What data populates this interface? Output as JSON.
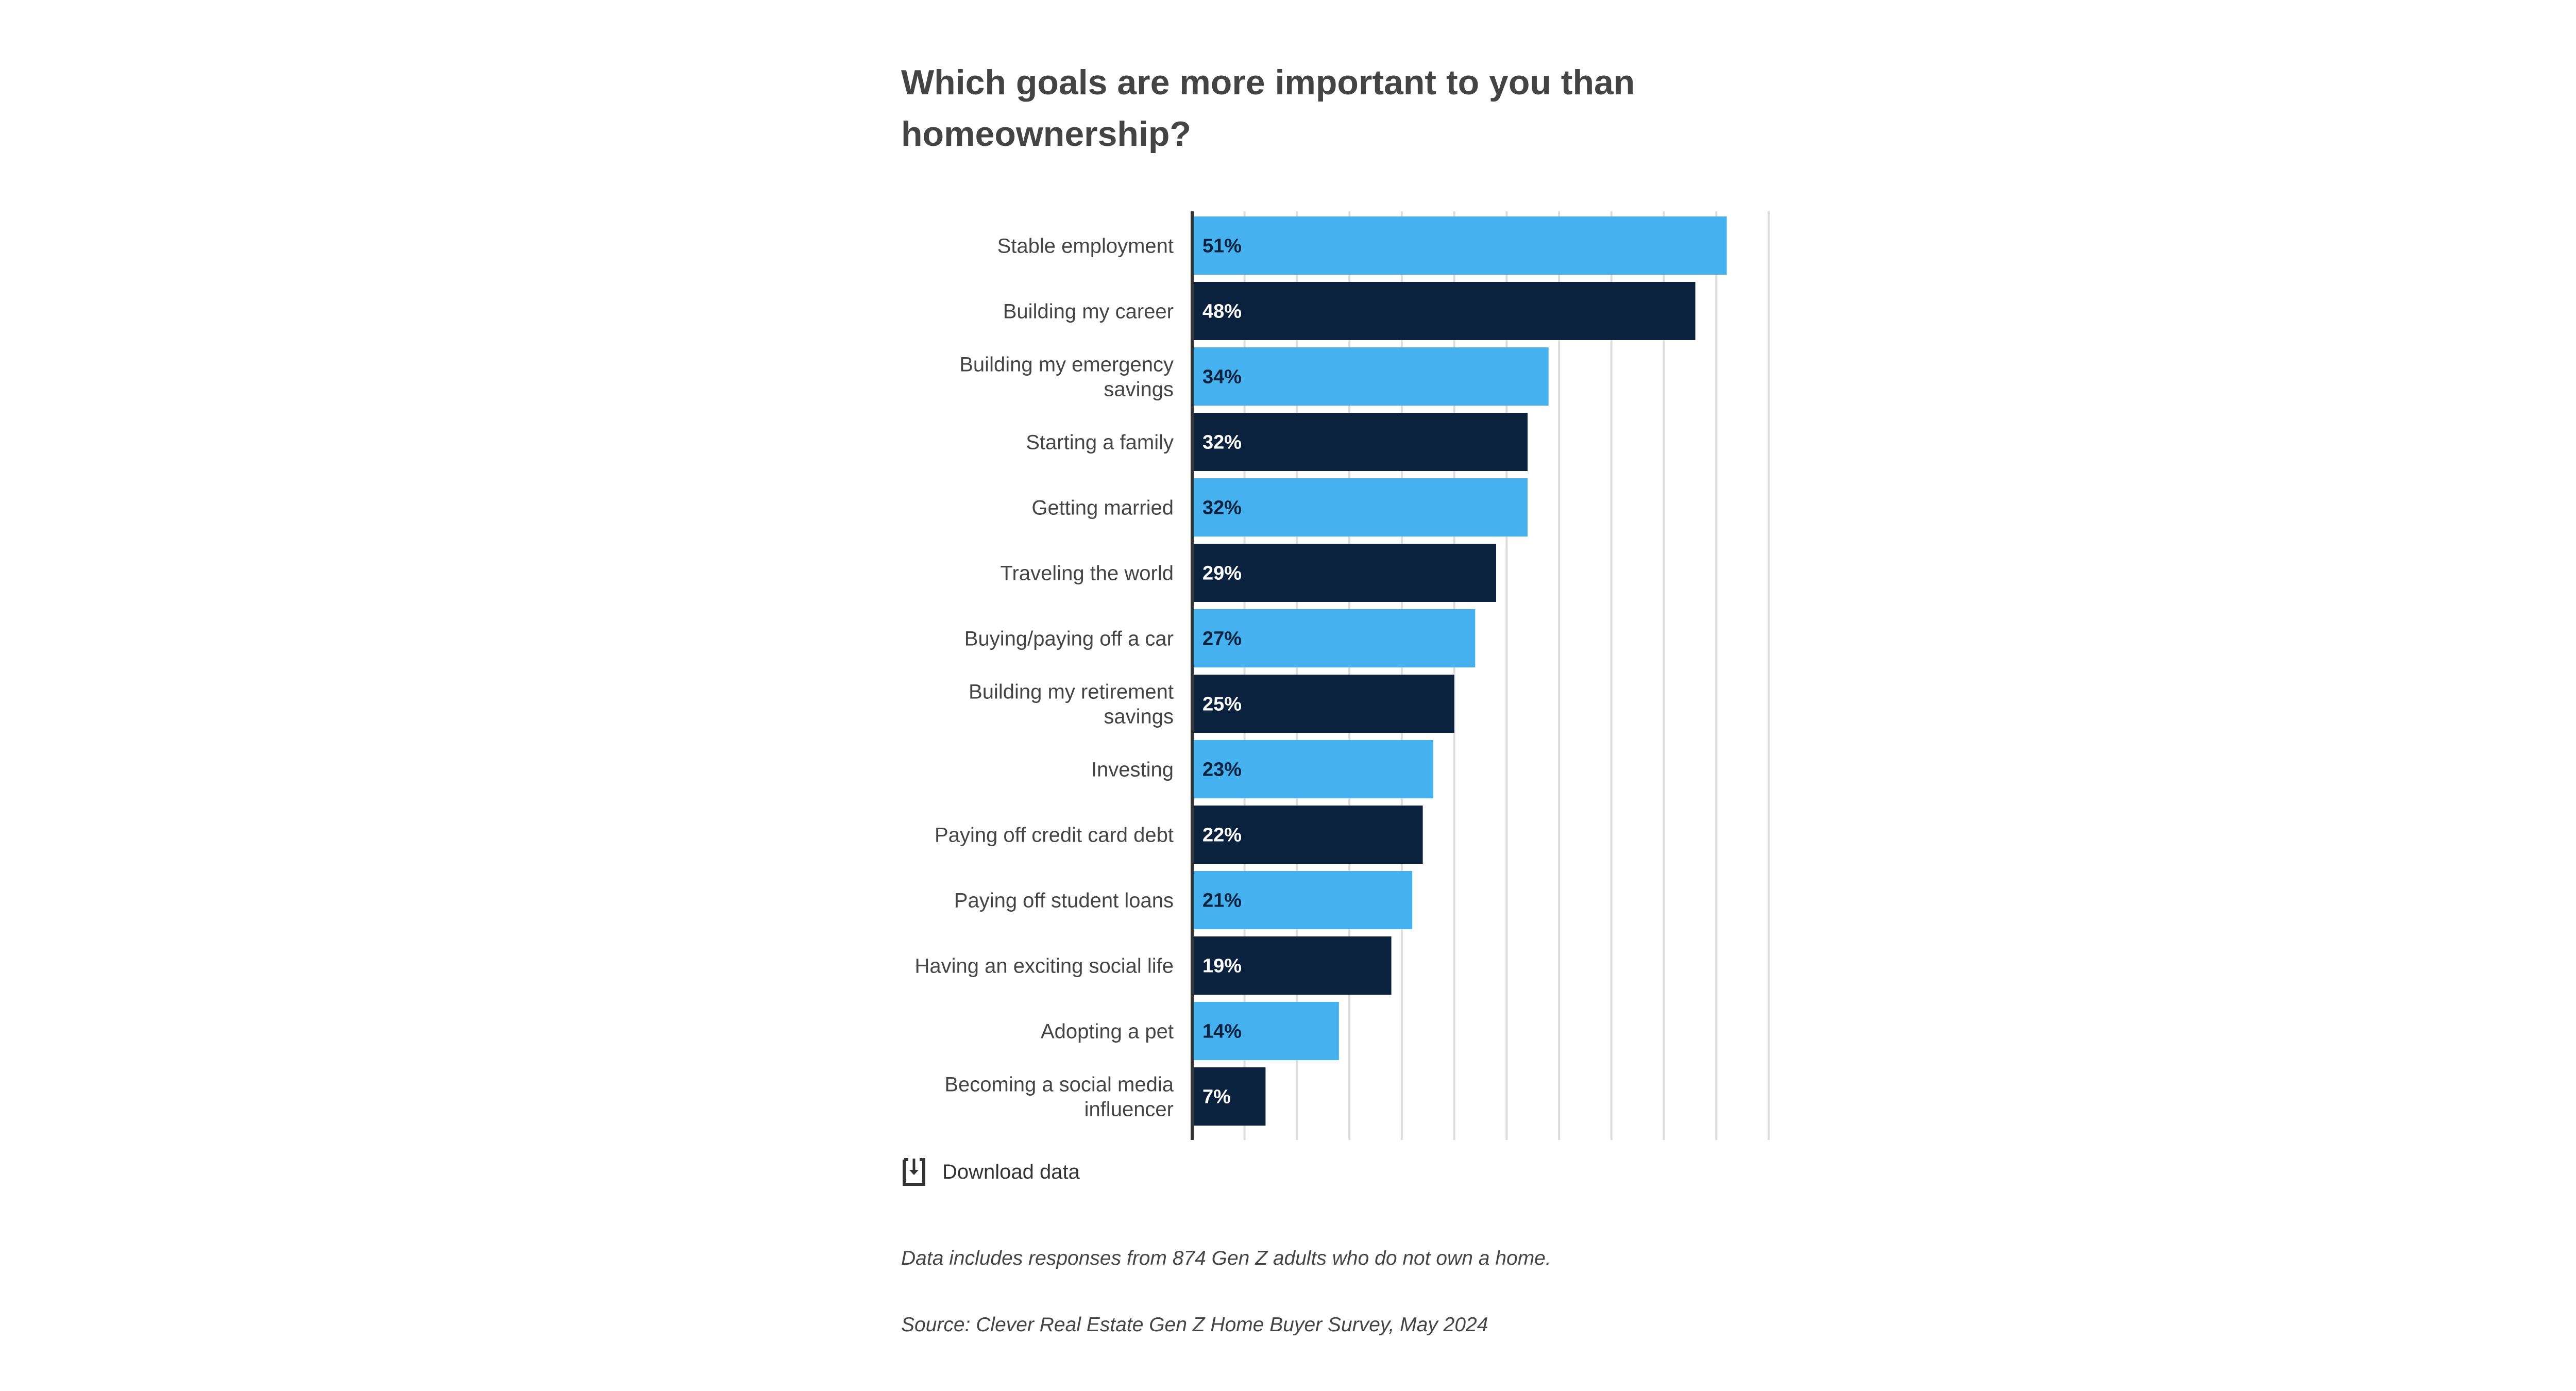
{
  "chart_data": {
    "type": "bar",
    "orientation": "horizontal",
    "title": "Which goals are more important to you than homeownership?",
    "categories": [
      [
        "Stable employment"
      ],
      [
        "Building my career"
      ],
      [
        "Building my emergency",
        "savings"
      ],
      [
        "Starting a family"
      ],
      [
        "Getting married"
      ],
      [
        "Traveling the world"
      ],
      [
        "Buying/paying off a car"
      ],
      [
        "Building my retirement",
        "savings"
      ],
      [
        "Investing"
      ],
      [
        "Paying off credit card debt"
      ],
      [
        "Paying off student loans"
      ],
      [
        "Having an exciting social life"
      ],
      [
        "Adopting a pet"
      ],
      [
        "Becoming a social media",
        "influencer"
      ]
    ],
    "values": [
      51,
      48,
      34,
      32,
      32,
      29,
      27,
      25,
      23,
      22,
      21,
      19,
      14,
      7
    ],
    "data_labels": [
      "51%",
      "48%",
      "34%",
      "32%",
      "32%",
      "29%",
      "27%",
      "25%",
      "23%",
      "22%",
      "21%",
      "19%",
      "14%",
      "7%"
    ],
    "unit": "%",
    "xlim": [
      0,
      55
    ],
    "grid_step": 5,
    "grid": true,
    "bar_colors": [
      "#45B1EE",
      "#0B223F"
    ],
    "label_colors": [
      "#0B223F",
      "#FFFFFF"
    ]
  },
  "download": {
    "label": "Download data",
    "icon": "download-icon"
  },
  "notes": {
    "sample": "Data includes responses from 874 Gen Z adults who do not own a home.",
    "source": "Source: Clever Real Estate Gen Z Home Buyer Survey, May 2024"
  }
}
